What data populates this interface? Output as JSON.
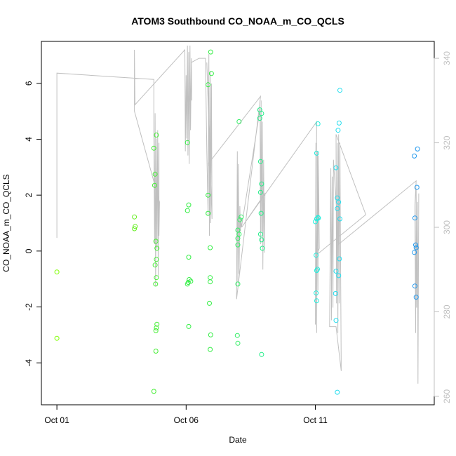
{
  "chart_data": {
    "type": "scatter",
    "title": "ATOM3 Southbound CO_NOAA_m_CO_QCLS",
    "xlabel": "Date",
    "ylabel": "CO_NOAA_m_CO_QCLS",
    "xlim": [
      -0.6,
      14.6
    ],
    "ylim": [
      -5.5,
      7.5
    ],
    "x_ticks": [
      {
        "value": 0,
        "label": "Oct 01"
      },
      {
        "value": 5,
        "label": "Oct 06"
      },
      {
        "value": 10,
        "label": "Oct 11"
      }
    ],
    "y_ticks": [
      -4,
      -2,
      0,
      2,
      4,
      6
    ],
    "y2_lim": [
      258,
      344
    ],
    "y2_ticks": [
      260,
      280,
      300,
      320,
      340
    ],
    "colors": {
      "axis": "#000000",
      "secondary_axis": "#c0c0c0",
      "line": "#c0c0c0"
    },
    "series": [
      {
        "type": "points",
        "points": [
          {
            "x": 0.0,
            "y": -0.75,
            "color": "#7fff00"
          },
          {
            "x": 0.0,
            "y": -3.12,
            "color": "#7fff00"
          },
          {
            "x": 3.0,
            "y": 1.22,
            "color": "#66ee22"
          },
          {
            "x": 3.0,
            "y": 0.8,
            "color": "#66ee22"
          },
          {
            "x": 3.03,
            "y": 0.88,
            "color": "#66ee22"
          },
          {
            "x": 3.75,
            "y": 3.68,
            "color": "#44ee33"
          },
          {
            "x": 3.8,
            "y": 2.75,
            "color": "#44ee33"
          },
          {
            "x": 3.78,
            "y": 2.35,
            "color": "#44ee33"
          },
          {
            "x": 3.85,
            "y": 4.15,
            "color": "#44ee33"
          },
          {
            "x": 3.83,
            "y": 0.35,
            "color": "#44ee33"
          },
          {
            "x": 3.87,
            "y": 0.1,
            "color": "#44ee33"
          },
          {
            "x": 3.85,
            "y": -0.3,
            "color": "#44ee33"
          },
          {
            "x": 3.8,
            "y": -0.5,
            "color": "#44ee33"
          },
          {
            "x": 3.85,
            "y": -0.95,
            "color": "#44ee33"
          },
          {
            "x": 3.82,
            "y": -1.18,
            "color": "#44ee33"
          },
          {
            "x": 3.87,
            "y": -2.62,
            "color": "#44ee33"
          },
          {
            "x": 3.85,
            "y": -2.75,
            "color": "#44ee33"
          },
          {
            "x": 3.83,
            "y": -2.85,
            "color": "#44ee33"
          },
          {
            "x": 3.83,
            "y": -3.58,
            "color": "#44ee33"
          },
          {
            "x": 3.75,
            "y": -5.02,
            "color": "#44ee33"
          },
          {
            "x": 5.05,
            "y": 3.88,
            "color": "#33ee44"
          },
          {
            "x": 5.1,
            "y": 1.65,
            "color": "#33ee44"
          },
          {
            "x": 5.05,
            "y": 1.45,
            "color": "#33ee44"
          },
          {
            "x": 5.1,
            "y": -0.22,
            "color": "#33ee44"
          },
          {
            "x": 5.12,
            "y": -1.02,
            "color": "#33ee44"
          },
          {
            "x": 5.18,
            "y": -1.08,
            "color": "#33ee44"
          },
          {
            "x": 5.08,
            "y": -1.12,
            "color": "#33ee44"
          },
          {
            "x": 5.05,
            "y": -1.18,
            "color": "#33ee44"
          },
          {
            "x": 5.1,
            "y": -2.7,
            "color": "#33ee44"
          },
          {
            "x": 5.95,
            "y": 7.12,
            "color": "#33ee44"
          },
          {
            "x": 5.98,
            "y": 6.35,
            "color": "#33ee44"
          },
          {
            "x": 5.85,
            "y": 5.95,
            "color": "#33ee44"
          },
          {
            "x": 5.85,
            "y": 2.0,
            "color": "#33ee44"
          },
          {
            "x": 5.85,
            "y": 1.35,
            "color": "#33ee44"
          },
          {
            "x": 5.93,
            "y": 0.12,
            "color": "#33ee44"
          },
          {
            "x": 5.93,
            "y": -0.95,
            "color": "#33ee44"
          },
          {
            "x": 5.93,
            "y": -1.1,
            "color": "#33ee44"
          },
          {
            "x": 5.9,
            "y": -1.87,
            "color": "#33ee44"
          },
          {
            "x": 5.95,
            "y": -3.0,
            "color": "#33ee44"
          },
          {
            "x": 5.93,
            "y": -3.52,
            "color": "#33ee44"
          },
          {
            "x": 7.05,
            "y": 4.63,
            "color": "#33ee66"
          },
          {
            "x": 7.0,
            "y": 0.75,
            "color": "#33ee66"
          },
          {
            "x": 7.05,
            "y": 0.6,
            "color": "#33ee66"
          },
          {
            "x": 7.0,
            "y": 0.45,
            "color": "#33ee66"
          },
          {
            "x": 7.0,
            "y": 0.22,
            "color": "#33ee66"
          },
          {
            "x": 7.13,
            "y": 1.22,
            "color": "#33ee66"
          },
          {
            "x": 7.08,
            "y": 1.12,
            "color": "#33ee66"
          },
          {
            "x": 7.0,
            "y": -1.18,
            "color": "#33ee66"
          },
          {
            "x": 6.98,
            "y": -3.02,
            "color": "#33ee66"
          },
          {
            "x": 7.0,
            "y": -3.3,
            "color": "#33ee66"
          },
          {
            "x": 7.85,
            "y": 5.05,
            "color": "#22ee88"
          },
          {
            "x": 7.92,
            "y": 4.92,
            "color": "#22ee88"
          },
          {
            "x": 7.85,
            "y": 4.75,
            "color": "#22ee88"
          },
          {
            "x": 7.88,
            "y": 3.2,
            "color": "#22ee88"
          },
          {
            "x": 7.92,
            "y": 2.4,
            "color": "#22ee88"
          },
          {
            "x": 7.88,
            "y": 2.1,
            "color": "#22ee88"
          },
          {
            "x": 7.9,
            "y": 1.35,
            "color": "#22ee88"
          },
          {
            "x": 7.88,
            "y": 0.6,
            "color": "#22ee88"
          },
          {
            "x": 7.92,
            "y": 0.4,
            "color": "#22ee88"
          },
          {
            "x": 7.95,
            "y": 0.1,
            "color": "#22ee88"
          },
          {
            "x": 7.92,
            "y": -3.7,
            "color": "#22ee88"
          },
          {
            "x": 10.1,
            "y": 4.55,
            "color": "#22eedd"
          },
          {
            "x": 10.05,
            "y": 3.5,
            "color": "#22eedd"
          },
          {
            "x": 10.1,
            "y": 1.2,
            "color": "#22eedd"
          },
          {
            "x": 10.05,
            "y": 1.15,
            "color": "#22eedd"
          },
          {
            "x": 10.0,
            "y": 1.05,
            "color": "#22eedd"
          },
          {
            "x": 10.12,
            "y": 1.18,
            "color": "#22eedd"
          },
          {
            "x": 10.03,
            "y": -0.15,
            "color": "#22eedd"
          },
          {
            "x": 10.08,
            "y": -0.65,
            "color": "#22eedd"
          },
          {
            "x": 10.05,
            "y": -0.7,
            "color": "#22eedd"
          },
          {
            "x": 10.03,
            "y": -1.5,
            "color": "#22eedd"
          },
          {
            "x": 10.05,
            "y": -1.78,
            "color": "#22eedd"
          },
          {
            "x": 10.95,
            "y": 5.75,
            "color": "#22ddee"
          },
          {
            "x": 10.92,
            "y": 4.58,
            "color": "#22ddee"
          },
          {
            "x": 10.88,
            "y": 4.32,
            "color": "#22ddee"
          },
          {
            "x": 10.8,
            "y": 2.98,
            "color": "#22ddee"
          },
          {
            "x": 10.85,
            "y": 1.9,
            "color": "#22ddee"
          },
          {
            "x": 10.9,
            "y": 1.75,
            "color": "#22ddee"
          },
          {
            "x": 10.85,
            "y": 1.52,
            "color": "#22ddee"
          },
          {
            "x": 10.95,
            "y": 1.15,
            "color": "#22ddee"
          },
          {
            "x": 10.93,
            "y": -0.28,
            "color": "#22ddee"
          },
          {
            "x": 10.8,
            "y": -0.72,
            "color": "#22ddee"
          },
          {
            "x": 10.9,
            "y": -0.88,
            "color": "#22ddee"
          },
          {
            "x": 10.78,
            "y": -1.52,
            "color": "#22ddee"
          },
          {
            "x": 10.8,
            "y": -2.48,
            "color": "#22ddee"
          },
          {
            "x": 10.85,
            "y": -5.05,
            "color": "#22ddee"
          },
          {
            "x": 13.95,
            "y": 3.65,
            "color": "#2299ee"
          },
          {
            "x": 13.83,
            "y": 3.4,
            "color": "#2299ee"
          },
          {
            "x": 13.93,
            "y": 2.28,
            "color": "#2299ee"
          },
          {
            "x": 13.85,
            "y": 1.18,
            "color": "#2299ee"
          },
          {
            "x": 13.88,
            "y": 0.22,
            "color": "#2299ee"
          },
          {
            "x": 13.9,
            "y": 0.12,
            "color": "#2299ee"
          },
          {
            "x": 13.83,
            "y": -0.05,
            "color": "#2299ee"
          },
          {
            "x": 13.85,
            "y": -1.25,
            "color": "#2299ee"
          },
          {
            "x": 13.9,
            "y": -1.65,
            "color": "#2299ee"
          }
        ]
      },
      {
        "type": "line",
        "axis": "right",
        "color": "#c0c0c0",
        "points": [
          [
            0.0,
            297.5
          ],
          [
            0.0,
            336.5
          ],
          [
            3.75,
            335.0
          ],
          [
            3.75,
            322.0
          ],
          [
            3.78,
            296.0
          ],
          [
            3.8,
            327.0
          ],
          [
            3.82,
            286.0
          ],
          [
            3.85,
            321.0
          ],
          [
            3.87,
            295.0
          ],
          [
            3.9,
            323.0
          ],
          [
            3.92,
            288.5
          ],
          [
            3.95,
            320.0
          ],
          [
            3.95,
            298.0
          ],
          [
            3.97,
            306.0
          ],
          [
            3.0,
            327.5
          ],
          [
            3.0,
            342.0
          ],
          [
            3.02,
            329.0
          ],
          [
            4.95,
            342.0
          ],
          [
            4.97,
            318.0
          ],
          [
            5.0,
            336.0
          ],
          [
            5.02,
            321.0
          ],
          [
            5.05,
            343.0
          ],
          [
            5.07,
            317.0
          ],
          [
            5.1,
            341.5
          ],
          [
            5.12,
            315.0
          ],
          [
            5.15,
            343.0
          ],
          [
            5.17,
            323.0
          ],
          [
            5.2,
            340.0
          ],
          [
            5.22,
            330.0
          ],
          [
            5.2,
            339.0
          ],
          [
            5.5,
            340.0
          ],
          [
            5.75,
            340.0
          ],
          [
            5.8,
            318.0
          ],
          [
            5.85,
            303.0
          ],
          [
            5.88,
            341.0
          ],
          [
            5.9,
            298.0
          ],
          [
            5.93,
            337.0
          ],
          [
            5.95,
            301.0
          ],
          [
            5.98,
            334.0
          ],
          [
            6.0,
            302.0
          ],
          [
            5.8,
            339.0
          ],
          [
            5.95,
            314.0
          ],
          [
            5.85,
            315.0
          ],
          [
            7.88,
            331.0
          ],
          [
            6.95,
            283.0
          ],
          [
            6.98,
            318.0
          ],
          [
            7.0,
            287.0
          ],
          [
            7.02,
            315.0
          ],
          [
            7.05,
            289.0
          ],
          [
            7.08,
            305.0
          ],
          [
            7.1,
            299.0
          ],
          [
            7.12,
            302.0
          ],
          [
            7.14,
            300.0
          ],
          [
            7.86,
            328.0
          ],
          [
            7.88,
            296.0
          ],
          [
            7.9,
            330.0
          ],
          [
            7.92,
            299.0
          ],
          [
            7.95,
            325.0
          ],
          [
            7.97,
            290.0
          ],
          [
            8.0,
            316.0
          ],
          [
            8.02,
            294.0
          ],
          [
            8.05,
            308.0
          ],
          [
            7.15,
            300.0
          ],
          [
            10.05,
            325.0
          ],
          [
            10.0,
            277.0
          ],
          [
            10.02,
            320.0
          ],
          [
            10.05,
            275.0
          ],
          [
            10.08,
            318.0
          ],
          [
            10.1,
            285.0
          ],
          [
            10.12,
            317.0
          ],
          [
            10.15,
            295.0
          ],
          [
            10.05,
            293.5
          ],
          [
            11.95,
            303.0
          ],
          [
            10.8,
            322.0
          ],
          [
            10.82,
            282.0
          ],
          [
            10.85,
            320.0
          ],
          [
            10.87,
            275.0
          ],
          [
            10.9,
            322.0
          ],
          [
            10.92,
            282.0
          ],
          [
            10.95,
            320.0
          ],
          [
            11.0,
            266.0
          ],
          [
            10.8,
            276.5
          ],
          [
            10.6,
            276.5
          ],
          [
            10.55,
            276.5
          ],
          [
            10.6,
            314.0
          ],
          [
            10.62,
            278.0
          ],
          [
            10.65,
            312.0
          ],
          [
            10.68,
            281.0
          ],
          [
            10.7,
            316.0
          ],
          [
            10.9,
            296.0
          ],
          [
            13.9,
            311.0
          ],
          [
            13.85,
            305.0
          ],
          [
            13.88,
            275.0
          ],
          [
            13.9,
            309.0
          ],
          [
            13.92,
            281.0
          ],
          [
            13.95,
            306.0
          ],
          [
            13.97,
            263.0
          ],
          [
            14.0,
            308.0
          ]
        ]
      }
    ]
  }
}
